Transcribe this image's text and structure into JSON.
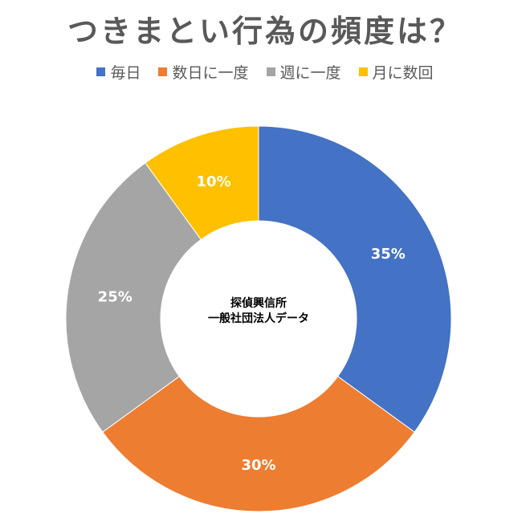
{
  "chart_data": {
    "type": "pie",
    "title": "つきまとい行為の頻度は？",
    "center_text": [
      "探偵興信所",
      "一般社団法人データ"
    ],
    "legend_position": "top",
    "categories": [
      "毎日",
      "数日に一度",
      "週に一度",
      "月に数回"
    ],
    "values": [
      35,
      30,
      25,
      10
    ],
    "data_labels": [
      "35%",
      "30%",
      "25%",
      "10%"
    ],
    "colors": [
      "#4472C4",
      "#ED7D31",
      "#A5A5A5",
      "#FFC000"
    ]
  }
}
